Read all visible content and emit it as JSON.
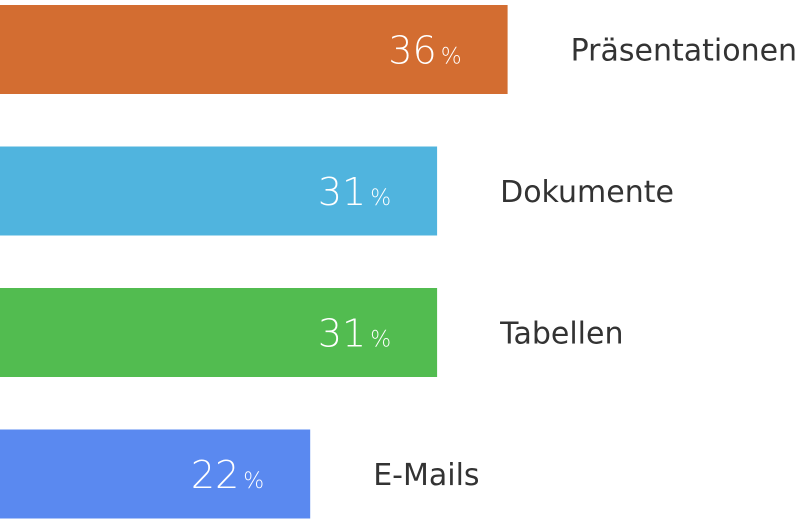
{
  "chart_data": {
    "type": "bar",
    "orientation": "horizontal",
    "categories": [
      "Präsentationen",
      "Dokumente",
      "Tabellen",
      "E-Mails"
    ],
    "values": [
      36,
      31,
      31,
      22
    ],
    "value_suffix": "%",
    "colors": [
      "#D36D31",
      "#50B4DE",
      "#52BC50",
      "#5A89F0"
    ],
    "xlim": [
      0,
      40
    ],
    "grid": false,
    "legend": "none",
    "title": "",
    "xlabel": "",
    "ylabel": ""
  }
}
